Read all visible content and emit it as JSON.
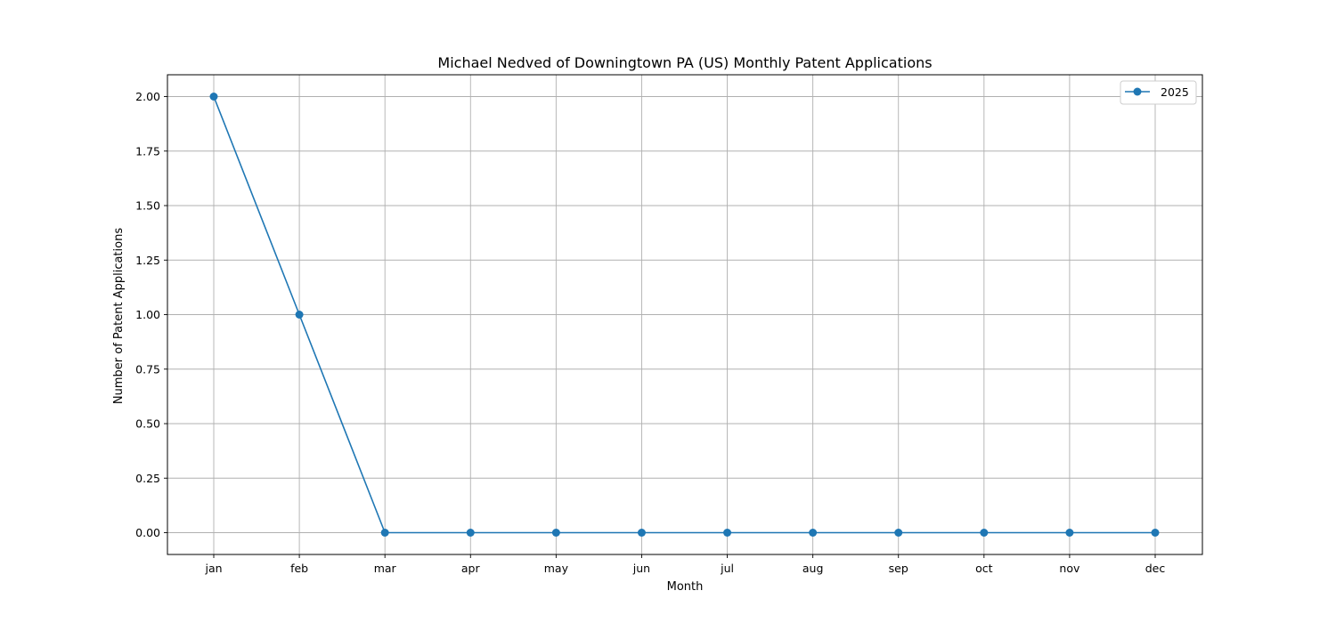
{
  "chart_data": {
    "type": "line",
    "title": "Michael Nedved of Downingtown PA (US) Monthly Patent Applications",
    "xlabel": "Month",
    "ylabel": "Number of Patent Applications",
    "categories": [
      "jan",
      "feb",
      "mar",
      "apr",
      "may",
      "jun",
      "jul",
      "aug",
      "sep",
      "oct",
      "nov",
      "dec"
    ],
    "series": [
      {
        "name": "2025",
        "values": [
          2,
          1,
          0,
          0,
          0,
          0,
          0,
          0,
          0,
          0,
          0,
          0
        ],
        "color": "#1f77b4",
        "marker": "circle"
      }
    ],
    "ylim": [
      -0.1,
      2.1
    ],
    "yticks": [
      0.0,
      0.25,
      0.5,
      0.75,
      1.0,
      1.25,
      1.5,
      1.75,
      2.0
    ],
    "ytick_labels": [
      "0.00",
      "0.25",
      "0.50",
      "0.75",
      "1.00",
      "1.25",
      "1.50",
      "1.75",
      "2.00"
    ],
    "grid": true,
    "legend_position": "top-right"
  }
}
